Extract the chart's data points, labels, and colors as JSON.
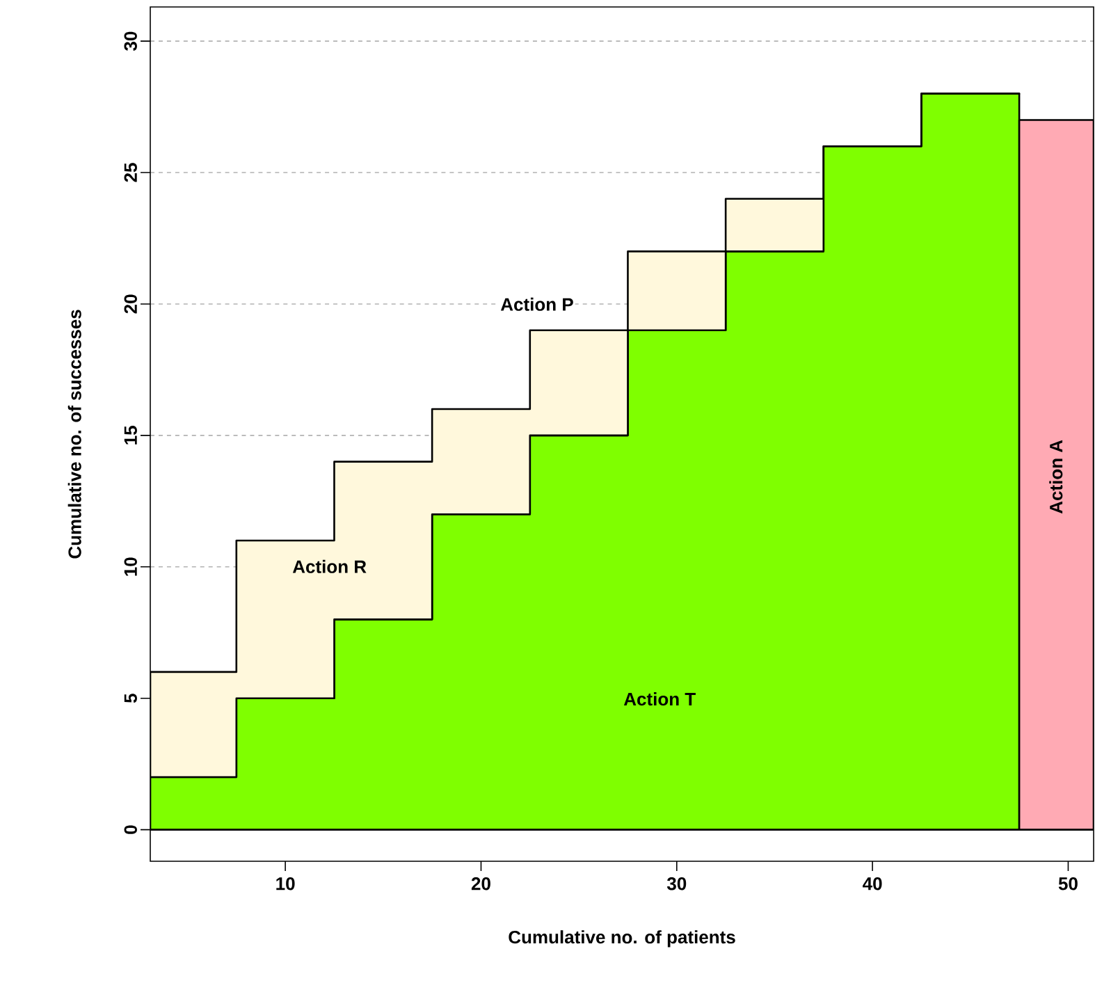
{
  "chart_data": {
    "type": "area",
    "stacked": true,
    "xlabel": "Cumulative no. of patients",
    "ylabel": "Cumulative no. of successes",
    "xlim": [
      3.1,
      51.3
    ],
    "ylim": [
      -1.2,
      31.3
    ],
    "xticks": [
      10,
      20,
      30,
      40,
      50
    ],
    "yticks": [
      0,
      5,
      10,
      15,
      20,
      25,
      30
    ],
    "grid": "y",
    "x": [
      3.1,
      7.5,
      7.5,
      12.5,
      12.5,
      17.5,
      17.5,
      22.5,
      22.5,
      27.5,
      27.5,
      32.5,
      32.5,
      37.5,
      37.5,
      42.5,
      42.5,
      47.5,
      47.5,
      51.3
    ],
    "series": [
      {
        "name": "Action T",
        "color": "#7fff00",
        "values": [
          2,
          2,
          5,
          5,
          8,
          8,
          12,
          12,
          15,
          15,
          19,
          19,
          22,
          22,
          26,
          26,
          28,
          28,
          null,
          null
        ]
      },
      {
        "name": "Action R",
        "color": "#fff8dc",
        "values": [
          4,
          4,
          6,
          6,
          6,
          6,
          4,
          4,
          4,
          4,
          3,
          3,
          2,
          2,
          0,
          0,
          0,
          0,
          null,
          null
        ]
      },
      {
        "name": "Action A",
        "color": "#ffaab4",
        "values": [
          null,
          null,
          null,
          null,
          null,
          null,
          null,
          null,
          null,
          null,
          null,
          null,
          null,
          null,
          null,
          null,
          null,
          null,
          27,
          27
        ]
      }
    ],
    "annotations": [
      "Action P"
    ]
  }
}
